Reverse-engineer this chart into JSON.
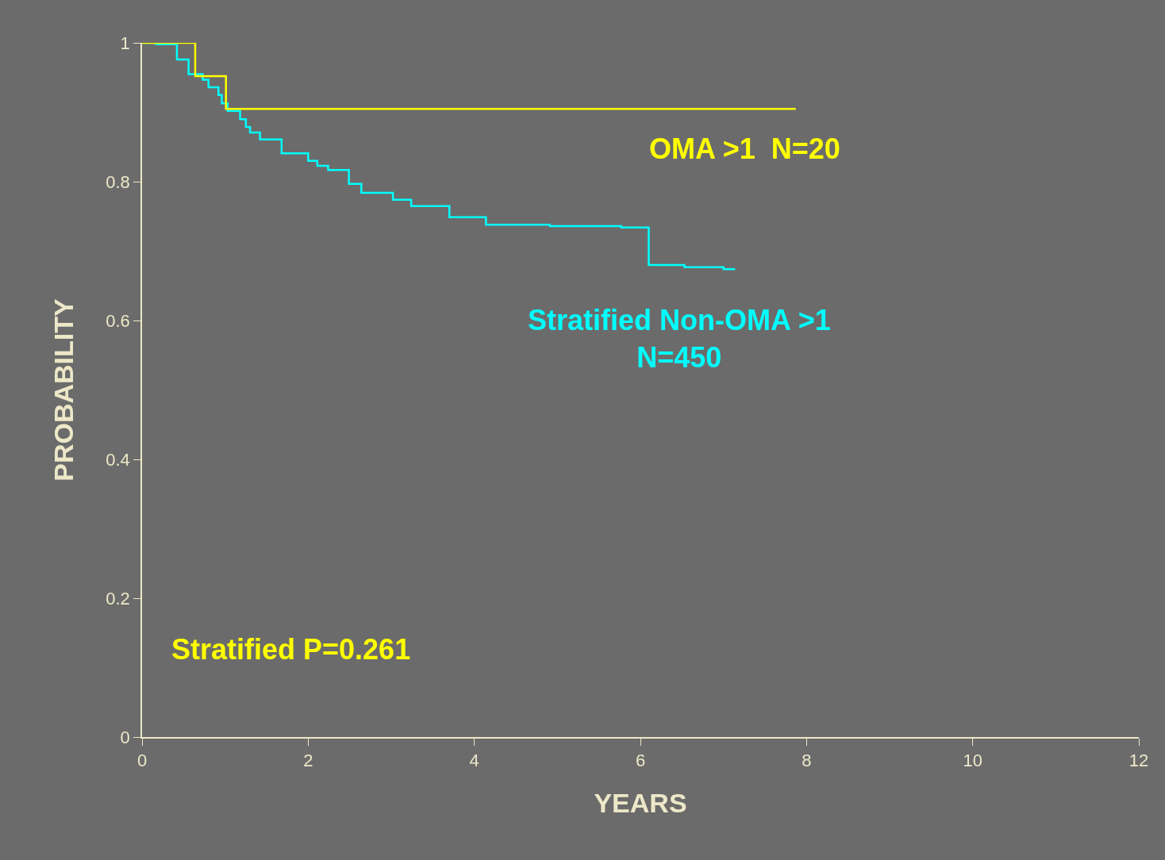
{
  "chart_data": {
    "type": "step",
    "xlabel": "YEARS",
    "ylabel": "PROBABILITY",
    "xlim": [
      0,
      12
    ],
    "xticks": [
      0,
      2,
      4,
      6,
      8,
      10,
      12
    ],
    "ylim": [
      0,
      1
    ],
    "yticks": [
      0,
      0.2,
      0.4,
      0.6,
      0.8,
      1
    ],
    "grid": false,
    "legend": false,
    "marker": "none",
    "line_style": "solid",
    "series": [
      {
        "name": "OMA >1  N=20",
        "color": "#ffff00",
        "x": [
          0,
          0.64,
          1.01,
          7.87
        ],
        "values": [
          1.0,
          0.952,
          0.905,
          0.905
        ]
      },
      {
        "name": "Stratified Non-OMA >1\nN=450",
        "color": "#00ffff",
        "x": [
          0,
          0.17,
          0.42,
          0.56,
          0.73,
          0.8,
          0.92,
          0.96,
          1.03,
          1.18,
          1.25,
          1.3,
          1.42,
          1.68,
          2.0,
          2.11,
          2.24,
          2.49,
          2.64,
          3.02,
          3.24,
          3.7,
          4.14,
          4.91,
          5.77,
          6.1,
          6.53,
          7.0,
          7.14
        ],
        "values": [
          1.0,
          0.998,
          0.976,
          0.955,
          0.947,
          0.936,
          0.925,
          0.913,
          0.902,
          0.89,
          0.879,
          0.871,
          0.861,
          0.841,
          0.83,
          0.823,
          0.817,
          0.797,
          0.784,
          0.774,
          0.765,
          0.749,
          0.738,
          0.736,
          0.734,
          0.68,
          0.677,
          0.674,
          0.674
        ]
      }
    ],
    "annotations": [
      "Stratified P=0.261"
    ]
  }
}
